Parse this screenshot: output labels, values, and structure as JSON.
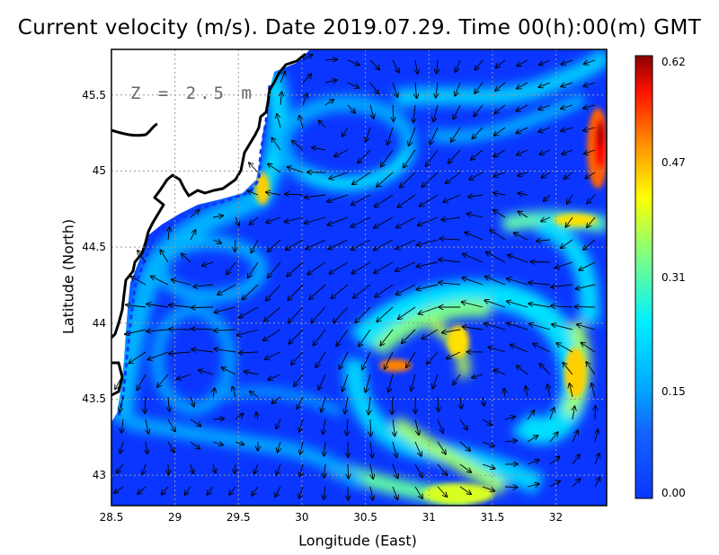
{
  "title": "Current velocity (m/s). Date 2019.07.29. Time 00(h):00(m) GMT",
  "depth_label": "Z = 2.5 m",
  "xlabel": "Longitude (East)",
  "ylabel": "Latitude (North)",
  "map": {
    "xlim": [
      28.5,
      32.4
    ],
    "ylim": [
      42.8,
      45.8
    ],
    "x_ticks": [
      28.5,
      29,
      29.5,
      30,
      30.5,
      31,
      31.5,
      32
    ],
    "x_tick_labels": [
      "28.5",
      "29",
      "29.5",
      "30",
      "30.5",
      "31",
      "31.5",
      "32"
    ],
    "y_ticks": [
      43,
      43.5,
      44,
      44.5,
      45,
      45.5
    ],
    "y_tick_labels": [
      "43",
      "43.5",
      "44",
      "44.5",
      "45",
      "45.5"
    ],
    "grid": "dotted"
  },
  "colorbar": {
    "range": [
      0.0,
      0.62
    ],
    "tick_labels": [
      "0.62",
      "0.47",
      "0.31",
      "0.15",
      "0.00"
    ],
    "tick_values": [
      0.62,
      0.47,
      0.31,
      0.15,
      0.0
    ],
    "colors": [
      "#0a36ff",
      "#1e90ff",
      "#00d8ff",
      "#7fff80",
      "#ffff00",
      "#ff8c00",
      "#ff0000",
      "#8b0000"
    ]
  },
  "colors": {
    "land": "#ffffff",
    "coast": "#000000",
    "low_speed": "#0a36ff"
  }
}
